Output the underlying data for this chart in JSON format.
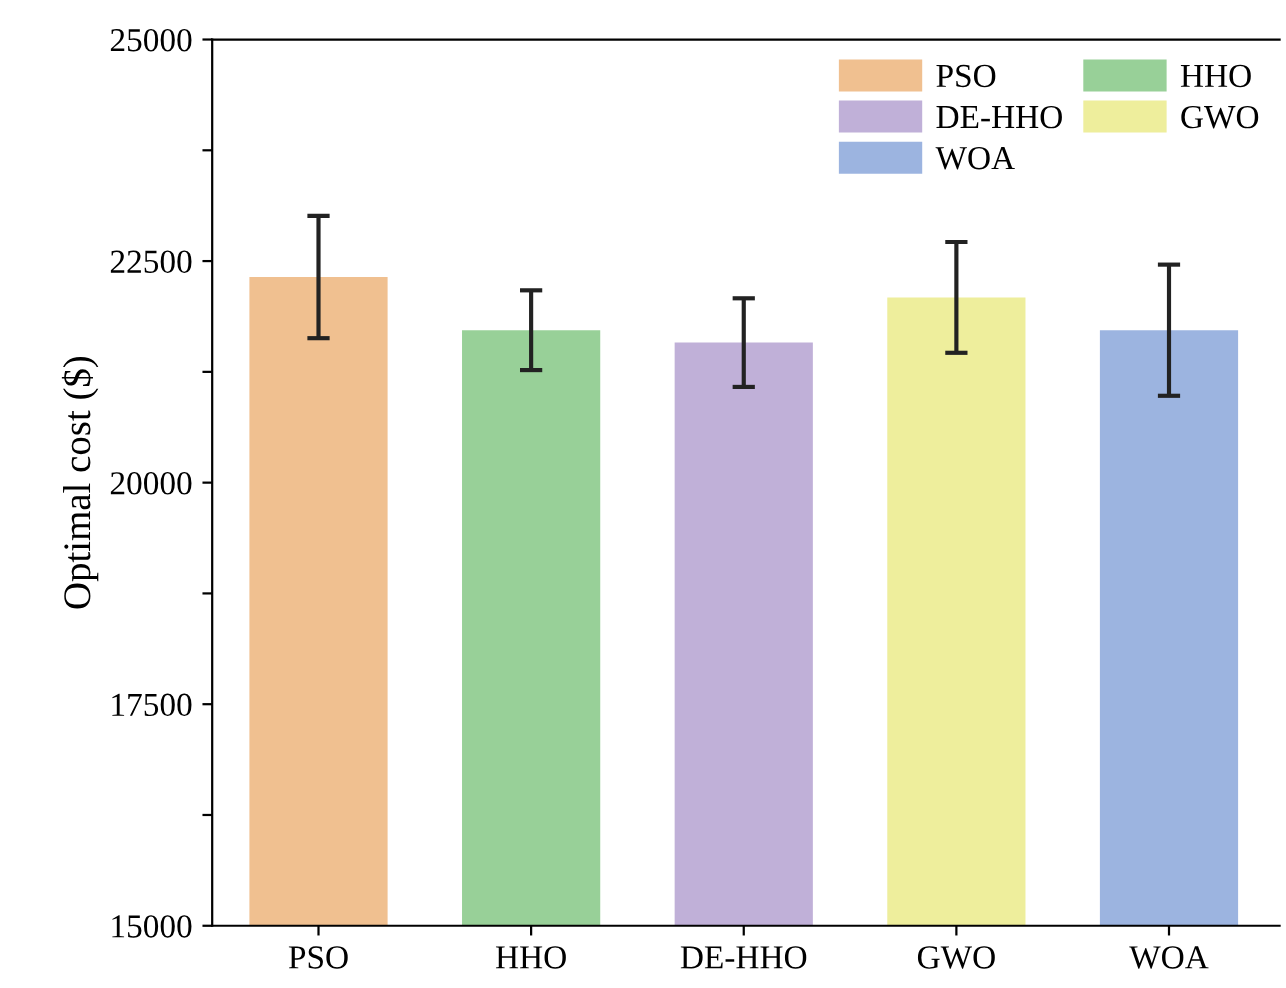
{
  "chart_data": {
    "type": "bar",
    "categories": [
      "PSO",
      "HHO",
      "DE-HHO",
      "GWO",
      "WOA"
    ],
    "series": [
      {
        "name": "PSO",
        "color": "#f0c090",
        "values": [
          22320,
          null,
          null,
          null,
          null
        ],
        "errors": [
          690,
          null,
          null,
          null,
          null
        ]
      },
      {
        "name": "HHO",
        "color": "#98d098",
        "values": [
          null,
          21720,
          null,
          null,
          null
        ],
        "errors": [
          null,
          450,
          null,
          null,
          null
        ]
      },
      {
        "name": "DE-HHO",
        "color": "#c0b0d8",
        "values": [
          null,
          null,
          21580,
          null,
          null
        ],
        "errors": [
          null,
          null,
          500,
          null,
          null
        ]
      },
      {
        "name": "GWO",
        "color": "#eeee9c",
        "values": [
          null,
          null,
          null,
          22090,
          null
        ],
        "errors": [
          null,
          null,
          null,
          625,
          null
        ]
      },
      {
        "name": "WOA",
        "color": "#9cb4e0",
        "values": [
          null,
          null,
          null,
          null,
          21720
        ],
        "errors": [
          null,
          null,
          null,
          null,
          740
        ]
      }
    ],
    "ylabel": "Optimal cost ($)",
    "ylim": [
      15000,
      25000
    ],
    "yticks": [
      15000,
      {
        "value": 16250,
        "label": null
      },
      17500,
      {
        "value": 18750,
        "label": null
      },
      20000,
      {
        "value": 21250,
        "label": null
      },
      22500,
      {
        "value": 23750,
        "label": null
      },
      25000
    ],
    "grid": false,
    "legend": "top right"
  }
}
